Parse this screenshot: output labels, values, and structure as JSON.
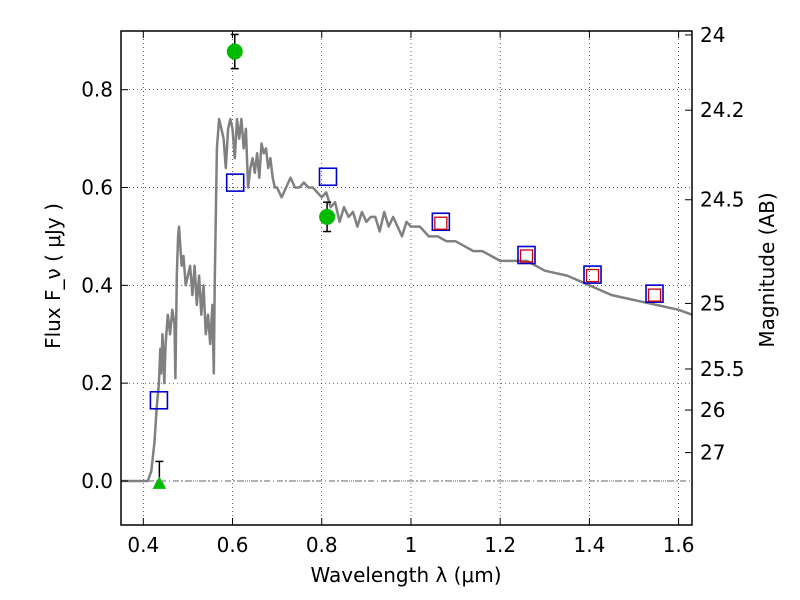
{
  "chart_data": {
    "type": "scatter",
    "xlabel": "Wavelength  λ (μm)",
    "ylabel": "Flux  F_ν  ( μJy )",
    "ylabel_right": "Magnitude (AB)",
    "xlim": [
      0.35,
      1.63
    ],
    "ylim": [
      -0.09,
      0.92
    ],
    "grid": true,
    "x_ticks": [
      {
        "value": 0.4,
        "label": "0.4"
      },
      {
        "value": 0.6,
        "label": "0.6"
      },
      {
        "value": 0.8,
        "label": "0.8"
      },
      {
        "value": 1.0,
        "label": "1"
      },
      {
        "value": 1.2,
        "label": "1.2"
      },
      {
        "value": 1.4,
        "label": "1.4"
      },
      {
        "value": 1.6,
        "label": "1.6"
      }
    ],
    "y_ticks": [
      {
        "value": 0.0,
        "label": "0.0"
      },
      {
        "value": 0.2,
        "label": "0.2"
      },
      {
        "value": 0.4,
        "label": "0.4"
      },
      {
        "value": 0.6,
        "label": "0.6"
      },
      {
        "value": 0.8,
        "label": "0.8"
      }
    ],
    "right_ticks": [
      {
        "flux": 0.912,
        "label": "24"
      },
      {
        "flux": 0.758,
        "label": "24.2"
      },
      {
        "flux": 0.575,
        "label": "24.5"
      },
      {
        "flux": 0.363,
        "label": "25"
      },
      {
        "flux": 0.229,
        "label": "25.5"
      },
      {
        "flux": 0.145,
        "label": "26"
      },
      {
        "flux": 0.058,
        "label": "27"
      }
    ],
    "model_spectrum": {
      "color": "#808080",
      "x": [
        0.35,
        0.41,
        0.418,
        0.425,
        0.43,
        0.435,
        0.438,
        0.44,
        0.443,
        0.447,
        0.45,
        0.455,
        0.46,
        0.465,
        0.47,
        0.472,
        0.475,
        0.478,
        0.48,
        0.483,
        0.486,
        0.49,
        0.495,
        0.5,
        0.505,
        0.51,
        0.515,
        0.52,
        0.525,
        0.53,
        0.535,
        0.54,
        0.545,
        0.55,
        0.555,
        0.558,
        0.56,
        0.565,
        0.57,
        0.575,
        0.58,
        0.585,
        0.59,
        0.595,
        0.6,
        0.605,
        0.61,
        0.615,
        0.62,
        0.625,
        0.63,
        0.635,
        0.64,
        0.645,
        0.65,
        0.655,
        0.66,
        0.665,
        0.67,
        0.675,
        0.68,
        0.685,
        0.69,
        0.695,
        0.7,
        0.71,
        0.72,
        0.73,
        0.74,
        0.75,
        0.76,
        0.77,
        0.78,
        0.79,
        0.8,
        0.81,
        0.82,
        0.83,
        0.84,
        0.85,
        0.86,
        0.87,
        0.88,
        0.89,
        0.9,
        0.91,
        0.92,
        0.93,
        0.94,
        0.95,
        0.96,
        0.97,
        0.98,
        0.99,
        1.0,
        1.02,
        1.04,
        1.06,
        1.08,
        1.1,
        1.12,
        1.14,
        1.16,
        1.18,
        1.2,
        1.22,
        1.24,
        1.26,
        1.28,
        1.3,
        1.35,
        1.4,
        1.45,
        1.5,
        1.55,
        1.6,
        1.63
      ],
      "y": [
        0.0,
        0.0,
        0.02,
        0.08,
        0.15,
        0.2,
        0.27,
        0.22,
        0.3,
        0.2,
        0.28,
        0.34,
        0.3,
        0.35,
        0.32,
        0.21,
        0.42,
        0.5,
        0.52,
        0.48,
        0.44,
        0.46,
        0.4,
        0.42,
        0.44,
        0.38,
        0.44,
        0.36,
        0.42,
        0.34,
        0.4,
        0.3,
        0.34,
        0.28,
        0.36,
        0.22,
        0.4,
        0.68,
        0.74,
        0.72,
        0.7,
        0.64,
        0.72,
        0.74,
        0.72,
        0.66,
        0.74,
        0.7,
        0.74,
        0.68,
        0.72,
        0.6,
        0.64,
        0.66,
        0.63,
        0.67,
        0.62,
        0.69,
        0.67,
        0.68,
        0.64,
        0.66,
        0.62,
        0.6,
        0.6,
        0.58,
        0.6,
        0.62,
        0.6,
        0.6,
        0.61,
        0.6,
        0.6,
        0.59,
        0.58,
        0.59,
        0.56,
        0.57,
        0.53,
        0.56,
        0.54,
        0.55,
        0.52,
        0.55,
        0.53,
        0.54,
        0.54,
        0.51,
        0.55,
        0.52,
        0.54,
        0.52,
        0.5,
        0.53,
        0.52,
        0.52,
        0.5,
        0.5,
        0.49,
        0.49,
        0.48,
        0.47,
        0.47,
        0.46,
        0.45,
        0.45,
        0.45,
        0.45,
        0.44,
        0.43,
        0.42,
        0.4,
        0.38,
        0.37,
        0.36,
        0.35,
        0.34
      ]
    },
    "series": [
      {
        "marker": "circle",
        "color": "#00bb00",
        "points": [
          {
            "x": 0.605,
            "y": 0.878,
            "err": 0.035
          },
          {
            "x": 0.812,
            "y": 0.54,
            "err": 0.03
          }
        ]
      },
      {
        "marker": "triangle",
        "color": "#00bb00",
        "points": [
          {
            "x": 0.436,
            "y": -0.005,
            "err_low": 0.0,
            "err_high": 0.045
          }
        ]
      },
      {
        "marker": "open-square",
        "color": "#0000cc",
        "points": [
          {
            "x": 0.435,
            "y": 0.165
          },
          {
            "x": 0.606,
            "y": 0.61
          },
          {
            "x": 0.814,
            "y": 0.622
          },
          {
            "x": 1.067,
            "y": 0.53
          },
          {
            "x": 1.259,
            "y": 0.462
          },
          {
            "x": 1.407,
            "y": 0.422
          },
          {
            "x": 1.546,
            "y": 0.383
          }
        ]
      },
      {
        "marker": "open-square-small",
        "color": "#cc0000",
        "points": [
          {
            "x": 1.067,
            "y": 0.527
          },
          {
            "x": 1.259,
            "y": 0.46
          },
          {
            "x": 1.407,
            "y": 0.42
          },
          {
            "x": 1.546,
            "y": 0.38
          }
        ]
      }
    ]
  }
}
